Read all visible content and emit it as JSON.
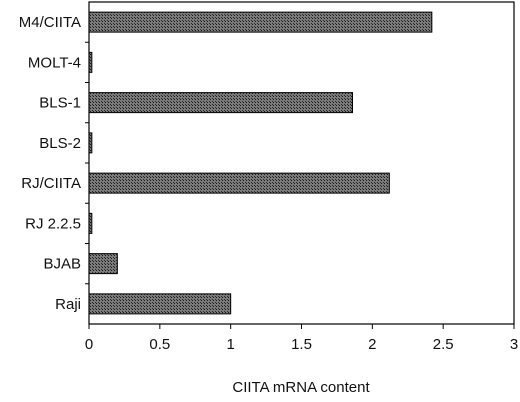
{
  "chart_data": {
    "type": "bar",
    "orientation": "horizontal",
    "categories": [
      "M4/CIITA",
      "MOLT-4",
      "BLS-1",
      "BLS-2",
      "RJ/CIITA",
      "RJ 2.2.5",
      "BJAB",
      "Raji"
    ],
    "values": [
      2.42,
      0.02,
      1.86,
      0.02,
      2.12,
      0.02,
      0.2,
      1.0
    ],
    "xlabel": "CIITA mRNA content",
    "ylabel": "",
    "xlim": [
      0,
      3
    ],
    "xticks": [
      0,
      0.5,
      1,
      1.5,
      2,
      2.5,
      3
    ],
    "xtick_labels": [
      "0",
      "0.5",
      "1",
      "1.5",
      "2",
      "2.5",
      "3"
    ],
    "grid": false,
    "legend": "none",
    "bar_color": "#555555"
  }
}
